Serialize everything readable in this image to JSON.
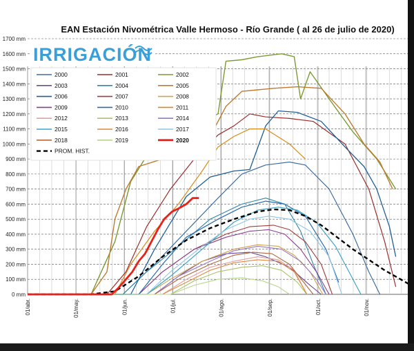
{
  "logo": {
    "text": "IRRIGACIÓN"
  },
  "chart_data": {
    "type": "line",
    "title": "EAN Estación Nivométrica Valle Hermoso - Río Grande  ( al 26 de julio de 2020)",
    "ylabel": "mm",
    "ylim": [
      0,
      1700
    ],
    "y_ticks": [
      "0 mm",
      "100 mm",
      "200 mm",
      "300 mm",
      "400 mm",
      "500 mm",
      "600 mm",
      "700 mm",
      "800 mm",
      "900 mm",
      "1000 mm",
      "1100 mm",
      "1200 mm",
      "1300 mm",
      "1400 mm",
      "1500 mm",
      "1600 mm",
      "1700 mm"
    ],
    "x_ticks": [
      "01/abr.",
      "01/may.",
      "01/jun.",
      "01/jul.",
      "01/ago.",
      "01/sep.",
      "01/oct.",
      "01/nov."
    ],
    "x_unit": "day of season from 01/abr.",
    "xlim": [
      0,
      240
    ],
    "series": [
      {
        "name": "2000",
        "color": "#3f6f9f",
        "width": 1.2,
        "points": [
          [
            0,
            0
          ],
          [
            60,
            0
          ],
          [
            70,
            100
          ],
          [
            80,
            200
          ],
          [
            100,
            420
          ],
          [
            120,
            640
          ],
          [
            135,
            800
          ],
          [
            150,
            860
          ],
          [
            165,
            880
          ],
          [
            175,
            860
          ],
          [
            190,
            700
          ],
          [
            205,
            400
          ],
          [
            215,
            150
          ],
          [
            222,
            0
          ]
        ]
      },
      {
        "name": "2001",
        "color": "#9b2d2a",
        "width": 1.2,
        "points": [
          [
            0,
            0
          ],
          [
            50,
            0
          ],
          [
            62,
            150
          ],
          [
            75,
            450
          ],
          [
            90,
            700
          ],
          [
            105,
            900
          ],
          [
            120,
            1060
          ],
          [
            130,
            1120
          ],
          [
            140,
            1200
          ],
          [
            150,
            1180
          ],
          [
            165,
            1170
          ],
          [
            180,
            1150
          ],
          [
            200,
            1000
          ],
          [
            215,
            700
          ],
          [
            225,
            350
          ],
          [
            232,
            50
          ]
        ]
      },
      {
        "name": "2002",
        "color": "#7a9a32",
        "width": 1.4,
        "points": [
          [
            0,
            0
          ],
          [
            40,
            0
          ],
          [
            55,
            350
          ],
          [
            65,
            750
          ],
          [
            75,
            920
          ],
          [
            90,
            960
          ],
          [
            100,
            1050
          ],
          [
            110,
            1150
          ],
          [
            120,
            1200
          ],
          [
            125,
            1550
          ],
          [
            135,
            1560
          ],
          [
            145,
            1580
          ],
          [
            160,
            1600
          ],
          [
            168,
            1580
          ],
          [
            172,
            1300
          ],
          [
            178,
            1480
          ],
          [
            190,
            1300
          ],
          [
            205,
            1080
          ],
          [
            220,
            900
          ],
          [
            232,
            700
          ]
        ]
      },
      {
        "name": "2003",
        "color": "#6a4c93",
        "width": 1.1,
        "points": [
          [
            0,
            0
          ],
          [
            80,
            0
          ],
          [
            95,
            120
          ],
          [
            110,
            220
          ],
          [
            125,
            270
          ],
          [
            140,
            280
          ],
          [
            150,
            250
          ],
          [
            165,
            180
          ],
          [
            178,
            60
          ],
          [
            185,
            0
          ]
        ]
      },
      {
        "name": "2004",
        "color": "#2e86ab",
        "width": 1.1,
        "points": [
          [
            0,
            0
          ],
          [
            60,
            0
          ],
          [
            75,
            150
          ],
          [
            95,
            320
          ],
          [
            115,
            500
          ],
          [
            135,
            600
          ],
          [
            150,
            640
          ],
          [
            162,
            600
          ],
          [
            172,
            420
          ],
          [
            180,
            200
          ],
          [
            188,
            0
          ]
        ]
      },
      {
        "name": "2005",
        "color": "#c07a30",
        "width": 1.4,
        "points": [
          [
            0,
            0
          ],
          [
            40,
            0
          ],
          [
            50,
            150
          ],
          [
            55,
            500
          ],
          [
            62,
            700
          ],
          [
            70,
            850
          ],
          [
            85,
            900
          ],
          [
            100,
            950
          ],
          [
            115,
            1050
          ],
          [
            125,
            1250
          ],
          [
            135,
            1350
          ],
          [
            145,
            1360
          ],
          [
            155,
            1370
          ],
          [
            170,
            1380
          ],
          [
            185,
            1370
          ],
          [
            200,
            1200
          ],
          [
            212,
            1000
          ],
          [
            222,
            880
          ],
          [
            230,
            700
          ]
        ]
      },
      {
        "name": "2006",
        "color": "#1f5f95",
        "width": 1.3,
        "points": [
          [
            0,
            0
          ],
          [
            65,
            0
          ],
          [
            80,
            300
          ],
          [
            100,
            650
          ],
          [
            115,
            780
          ],
          [
            130,
            820
          ],
          [
            140,
            830
          ],
          [
            150,
            1120
          ],
          [
            158,
            1220
          ],
          [
            170,
            1210
          ],
          [
            185,
            1150
          ],
          [
            200,
            980
          ],
          [
            212,
            850
          ],
          [
            220,
            700
          ],
          [
            228,
            450
          ],
          [
            232,
            250
          ]
        ]
      },
      {
        "name": "2007",
        "color": "#a23b3b",
        "width": 1.1,
        "points": [
          [
            0,
            0
          ],
          [
            70,
            0
          ],
          [
            85,
            150
          ],
          [
            105,
            300
          ],
          [
            125,
            400
          ],
          [
            140,
            450
          ],
          [
            155,
            460
          ],
          [
            165,
            430
          ],
          [
            175,
            350
          ],
          [
            185,
            200
          ],
          [
            192,
            0
          ]
        ]
      },
      {
        "name": "2008",
        "color": "#d1a34a",
        "width": 1.1,
        "points": [
          [
            0,
            0
          ],
          [
            75,
            0
          ],
          [
            90,
            100
          ],
          [
            110,
            220
          ],
          [
            130,
            300
          ],
          [
            145,
            330
          ],
          [
            158,
            320
          ],
          [
            168,
            260
          ],
          [
            178,
            150
          ],
          [
            186,
            0
          ]
        ]
      },
      {
        "name": "2009",
        "color": "#8a3e8c",
        "width": 1.1,
        "points": [
          [
            0,
            0
          ],
          [
            70,
            0
          ],
          [
            85,
            150
          ],
          [
            105,
            300
          ],
          [
            125,
            380
          ],
          [
            140,
            420
          ],
          [
            152,
            430
          ],
          [
            162,
            400
          ],
          [
            172,
            300
          ],
          [
            182,
            150
          ],
          [
            190,
            0
          ]
        ]
      },
      {
        "name": "2010",
        "color": "#2b6bb0",
        "width": 1.2,
        "points": [
          [
            0,
            0
          ],
          [
            70,
            0
          ],
          [
            85,
            200
          ],
          [
            100,
            380
          ],
          [
            120,
            500
          ],
          [
            135,
            580
          ],
          [
            150,
            620
          ],
          [
            162,
            600
          ],
          [
            175,
            520
          ],
          [
            188,
            300
          ],
          [
            196,
            80
          ]
        ]
      },
      {
        "name": "2011",
        "color": "#d88a1a",
        "width": 1.2,
        "points": [
          [
            0,
            0
          ],
          [
            55,
            0
          ],
          [
            65,
            200
          ],
          [
            80,
            420
          ],
          [
            95,
            600
          ],
          [
            110,
            820
          ],
          [
            120,
            980
          ],
          [
            130,
            1050
          ],
          [
            140,
            1100
          ],
          [
            150,
            1100
          ],
          [
            165,
            1000
          ],
          [
            175,
            900
          ]
        ]
      },
      {
        "name": "2012",
        "color": "#e2a0a0",
        "width": 1.1,
        "points": [
          [
            0,
            0
          ],
          [
            85,
            0
          ],
          [
            100,
            100
          ],
          [
            115,
            180
          ],
          [
            130,
            220
          ],
          [
            145,
            250
          ],
          [
            158,
            230
          ],
          [
            168,
            160
          ],
          [
            176,
            0
          ]
        ]
      },
      {
        "name": "2013",
        "color": "#aac36a",
        "width": 1.1,
        "points": [
          [
            0,
            0
          ],
          [
            90,
            0
          ],
          [
            105,
            90
          ],
          [
            120,
            150
          ],
          [
            135,
            180
          ],
          [
            148,
            190
          ],
          [
            160,
            160
          ],
          [
            170,
            80
          ],
          [
            176,
            0
          ]
        ]
      },
      {
        "name": "2014",
        "color": "#9a78c4",
        "width": 1.1,
        "points": [
          [
            0,
            0
          ],
          [
            80,
            0
          ],
          [
            95,
            120
          ],
          [
            115,
            220
          ],
          [
            130,
            290
          ],
          [
            145,
            320
          ],
          [
            160,
            300
          ],
          [
            172,
            220
          ],
          [
            182,
            100
          ],
          [
            188,
            0
          ]
        ]
      },
      {
        "name": "2015",
        "color": "#3fa3c6",
        "width": 1.2,
        "points": [
          [
            0,
            0
          ],
          [
            75,
            0
          ],
          [
            90,
            120
          ],
          [
            110,
            300
          ],
          [
            130,
            480
          ],
          [
            145,
            560
          ],
          [
            158,
            580
          ],
          [
            170,
            560
          ],
          [
            182,
            480
          ],
          [
            194,
            320
          ],
          [
            204,
            120
          ],
          [
            210,
            0
          ]
        ]
      },
      {
        "name": "2016",
        "color": "#e08a3c",
        "width": 1.1,
        "points": [
          [
            0,
            0
          ],
          [
            85,
            0
          ],
          [
            100,
            80
          ],
          [
            115,
            160
          ],
          [
            130,
            210
          ],
          [
            145,
            230
          ],
          [
            158,
            220
          ],
          [
            168,
            150
          ],
          [
            176,
            0
          ]
        ]
      },
      {
        "name": "2017",
        "color": "#8ec6e8",
        "width": 1.1,
        "points": [
          [
            0,
            0
          ],
          [
            75,
            0
          ],
          [
            90,
            150
          ],
          [
            110,
            320
          ],
          [
            125,
            430
          ],
          [
            140,
            500
          ],
          [
            152,
            520
          ],
          [
            165,
            500
          ],
          [
            178,
            420
          ],
          [
            190,
            250
          ],
          [
            198,
            0
          ]
        ]
      },
      {
        "name": "2018",
        "color": "#b0673a",
        "width": 1.1,
        "points": [
          [
            0,
            0
          ],
          [
            80,
            0
          ],
          [
            95,
            100
          ],
          [
            115,
            200
          ],
          [
            130,
            260
          ],
          [
            142,
            280
          ],
          [
            154,
            270
          ],
          [
            165,
            200
          ],
          [
            174,
            80
          ],
          [
            180,
            0
          ]
        ]
      },
      {
        "name": "2019",
        "color": "#b5d68a",
        "width": 1.1,
        "points": [
          [
            0,
            0
          ],
          [
            90,
            0
          ],
          [
            105,
            60
          ],
          [
            120,
            100
          ],
          [
            135,
            110
          ],
          [
            148,
            90
          ],
          [
            158,
            50
          ],
          [
            165,
            0
          ]
        ]
      },
      {
        "name": "2020",
        "color": "#e8211b",
        "width": 2.8,
        "points": [
          [
            0,
            0
          ],
          [
            53,
            0
          ],
          [
            57,
            40
          ],
          [
            62,
            100
          ],
          [
            66,
            150
          ],
          [
            70,
            220
          ],
          [
            74,
            270
          ],
          [
            78,
            350
          ],
          [
            82,
            430
          ],
          [
            86,
            500
          ],
          [
            91,
            550
          ],
          [
            95,
            570
          ],
          [
            100,
            600
          ],
          [
            104,
            640
          ],
          [
            108,
            640
          ]
        ]
      },
      {
        "name": "PROM. HIST.",
        "color": "#000000",
        "width": 2.4,
        "dash": "6,4",
        "points": [
          [
            0,
            0
          ],
          [
            40,
            0
          ],
          [
            55,
            20
          ],
          [
            70,
            120
          ],
          [
            85,
            250
          ],
          [
            100,
            360
          ],
          [
            115,
            440
          ],
          [
            130,
            500
          ],
          [
            145,
            550
          ],
          [
            155,
            565
          ],
          [
            165,
            560
          ],
          [
            175,
            520
          ],
          [
            185,
            460
          ],
          [
            195,
            380
          ],
          [
            205,
            300
          ],
          [
            215,
            230
          ],
          [
            225,
            160
          ],
          [
            235,
            100
          ],
          [
            240,
            70
          ]
        ]
      }
    ]
  }
}
